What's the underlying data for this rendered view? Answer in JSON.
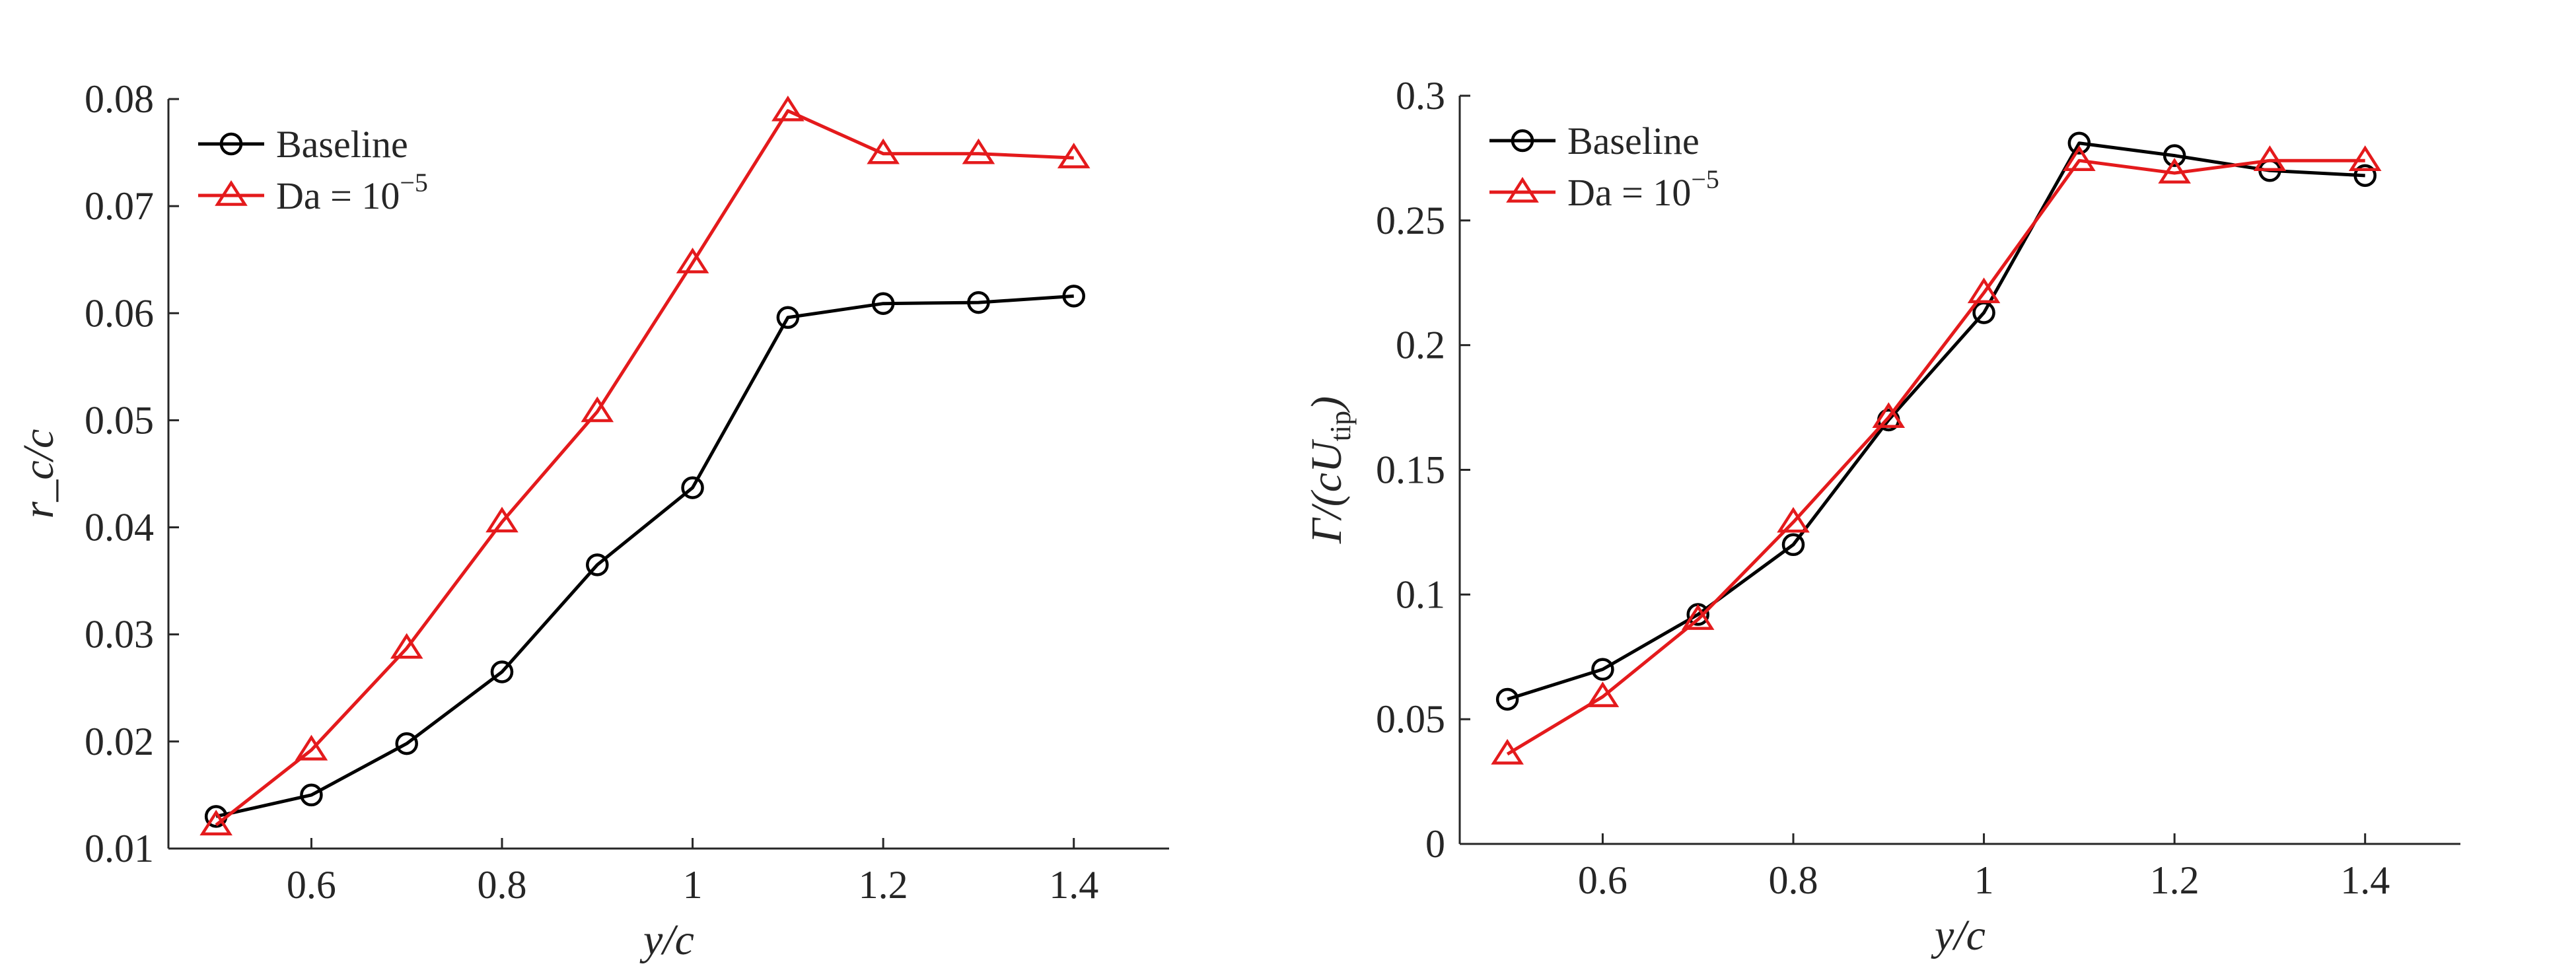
{
  "chart_data": [
    {
      "type": "line",
      "xlabel": "y/c",
      "ylabel": "r_c/c",
      "xlim": [
        0.45,
        1.5
      ],
      "ylim": [
        0.01,
        0.08
      ],
      "xticks": [
        0.6,
        0.8,
        1.0,
        1.2,
        1.4
      ],
      "xtick_labels": [
        "0.6",
        "0.8",
        "1",
        "1.2",
        "1.4"
      ],
      "yticks": [
        0.01,
        0.02,
        0.03,
        0.04,
        0.05,
        0.06,
        0.07,
        0.08
      ],
      "ytick_labels": [
        "0.01",
        "0.02",
        "0.03",
        "0.04",
        "0.05",
        "0.06",
        "0.07",
        "0.08"
      ],
      "grid": false,
      "legend_position": "top-left",
      "x": [
        0.5,
        0.6,
        0.7,
        0.8,
        0.9,
        1.0,
        1.1,
        1.2,
        1.3,
        1.4
      ],
      "series": [
        {
          "name": "Baseline",
          "legend_main": "Baseline",
          "legend_sup": "",
          "color": "#000000",
          "marker": "circle",
          "values": [
            0.013,
            0.015,
            0.0198,
            0.0265,
            0.0365,
            0.0437,
            0.0596,
            0.0609,
            0.061,
            0.0616
          ]
        },
        {
          "name": "Da = 10^-5",
          "legend_main": "Da = 10",
          "legend_sup": "−5",
          "color": "#e41a1c",
          "marker": "triangle",
          "values": [
            0.0122,
            0.0192,
            0.0287,
            0.0405,
            0.0508,
            0.0647,
            0.0789,
            0.0749,
            0.0749,
            0.0745
          ]
        }
      ]
    },
    {
      "type": "line",
      "xlabel": "y/c",
      "ylabel": "Γ/(cU_tip)",
      "ylabel_main": "Γ/(cU",
      "ylabel_sub": "tip",
      "ylabel_close": ")",
      "xlim": [
        0.45,
        1.5
      ],
      "ylim": [
        0,
        0.3
      ],
      "xticks": [
        0.6,
        0.8,
        1.0,
        1.2,
        1.4
      ],
      "xtick_labels": [
        "0.6",
        "0.8",
        "1",
        "1.2",
        "1.4"
      ],
      "yticks": [
        0,
        0.05,
        0.1,
        0.15,
        0.2,
        0.25,
        0.3
      ],
      "ytick_labels": [
        "0",
        "0.05",
        "0.1",
        "0.15",
        "0.2",
        "0.25",
        "0.3"
      ],
      "grid": false,
      "legend_position": "top-left",
      "x": [
        0.5,
        0.6,
        0.7,
        0.8,
        0.9,
        1.0,
        1.1,
        1.2,
        1.3,
        1.4
      ],
      "series": [
        {
          "name": "Baseline",
          "legend_main": "Baseline",
          "legend_sup": "",
          "color": "#000000",
          "marker": "circle",
          "values": [
            0.058,
            0.07,
            0.092,
            0.12,
            0.17,
            0.213,
            0.281,
            0.276,
            0.27,
            0.268
          ]
        },
        {
          "name": "Da = 10^-5",
          "legend_main": "Da = 10",
          "legend_sup": "−5",
          "color": "#e41a1c",
          "marker": "triangle",
          "values": [
            0.036,
            0.059,
            0.09,
            0.129,
            0.171,
            0.221,
            0.274,
            0.269,
            0.274,
            0.274
          ]
        }
      ]
    }
  ]
}
